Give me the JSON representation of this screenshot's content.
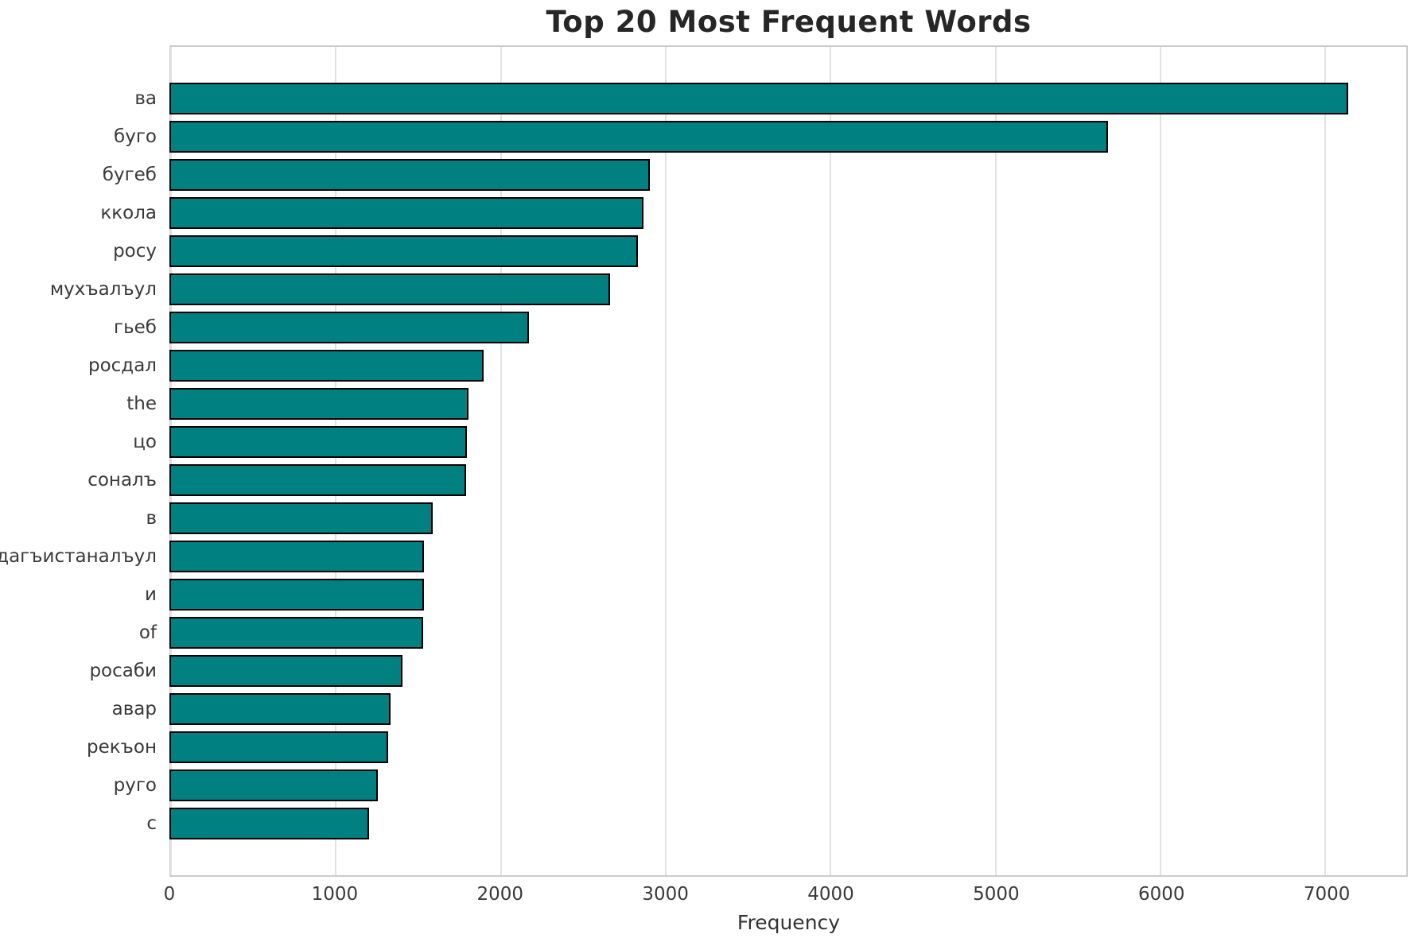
{
  "chart_data": {
    "type": "bar",
    "orientation": "horizontal",
    "title": "Top 20 Most Frequent Words",
    "xlabel": "Frequency",
    "ylabel": "",
    "categories": [
      "ва",
      "буго",
      "бугеб",
      "ккола",
      "росу",
      "мухъалъул",
      "гьеб",
      "росдал",
      "the",
      "цо",
      "соналъ",
      "в",
      "дагъистаналъул",
      "и",
      "of",
      "росаби",
      "авар",
      "рекъон",
      "руго",
      "с"
    ],
    "values": [
      7130,
      5675,
      2905,
      2865,
      2835,
      2665,
      2175,
      1900,
      1810,
      1800,
      1795,
      1590,
      1540,
      1537,
      1533,
      1410,
      1335,
      1322,
      1262,
      1208
    ],
    "xticks": [
      0,
      1000,
      2000,
      3000,
      4000,
      5000,
      6000,
      7000
    ],
    "xlim": [
      0,
      7490
    ],
    "grid": true,
    "legend": false,
    "colors": {
      "bar_fill": "#008080",
      "bar_edge": "#000000",
      "grid_line": "#e2e2e2",
      "spine": "#cccccc",
      "title_text": "#262626",
      "tick_text": "#3a3a3a"
    }
  }
}
